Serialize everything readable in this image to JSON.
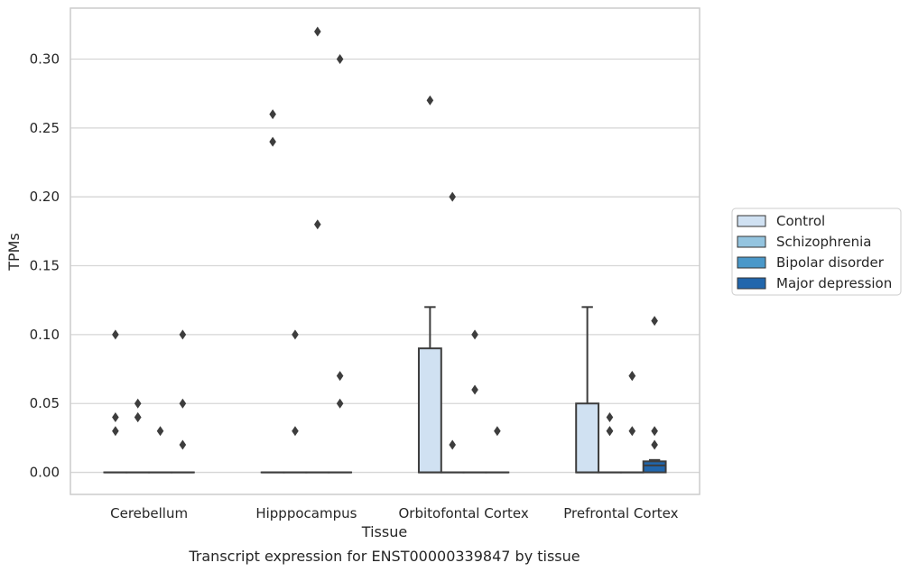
{
  "chart_data": {
    "type": "box",
    "caption": "Transcript expression for ENST00000339847 by tissue",
    "xlabel": "Tissue",
    "ylabel": "TPMs",
    "categories": [
      "Cerebellum",
      "Hipppocampus",
      "Orbitofontal Cortex",
      "Prefrontal Cortex"
    ],
    "ylim": [
      -0.016,
      0.337
    ],
    "yticks": [
      0.0,
      0.05,
      0.1,
      0.15,
      0.2,
      0.25,
      0.3
    ],
    "ytick_labels": [
      "0.00",
      "0.05",
      "0.10",
      "0.15",
      "0.20",
      "0.25",
      "0.30"
    ],
    "grid": "horizontal",
    "legend_position": "right",
    "series": [
      {
        "name": "Control",
        "color": "#d0e1f2",
        "boxes": [
          {
            "category": "Cerebellum",
            "q1": 0,
            "median": 0,
            "q3": 0,
            "whislo": 0,
            "whishi": 0,
            "fliers": [
              0.1,
              0.04,
              0.03
            ]
          },
          {
            "category": "Hipppocampus",
            "q1": 0,
            "median": 0,
            "q3": 0,
            "whislo": 0,
            "whishi": 0,
            "fliers": [
              0.26,
              0.24
            ]
          },
          {
            "category": "Orbitofontal Cortex",
            "q1": 0,
            "median": 0,
            "q3": 0.09,
            "whislo": 0,
            "whishi": 0.12,
            "fliers": [
              0.27
            ]
          },
          {
            "category": "Prefrontal Cortex",
            "q1": 0,
            "median": 0,
            "q3": 0.05,
            "whislo": 0,
            "whishi": 0.12,
            "fliers": []
          }
        ]
      },
      {
        "name": "Schizophrenia",
        "color": "#94c4df",
        "boxes": [
          {
            "category": "Cerebellum",
            "q1": 0,
            "median": 0,
            "q3": 0,
            "whislo": 0,
            "whishi": 0,
            "fliers": [
              0.05,
              0.04,
              0.04
            ]
          },
          {
            "category": "Hipppocampus",
            "q1": 0,
            "median": 0,
            "q3": 0,
            "whislo": 0,
            "whishi": 0,
            "fliers": [
              0.1,
              0.03
            ]
          },
          {
            "category": "Orbitofontal Cortex",
            "q1": 0,
            "median": 0,
            "q3": 0,
            "whislo": 0,
            "whishi": 0,
            "fliers": [
              0.2,
              0.02
            ]
          },
          {
            "category": "Prefrontal Cortex",
            "q1": 0,
            "median": 0,
            "q3": 0,
            "whislo": 0,
            "whishi": 0,
            "fliers": [
              0.04,
              0.03,
              0.03
            ]
          }
        ]
      },
      {
        "name": "Bipolar disorder",
        "color": "#4a98c9",
        "boxes": [
          {
            "category": "Cerebellum",
            "q1": 0,
            "median": 0,
            "q3": 0,
            "whislo": 0,
            "whishi": 0,
            "fliers": [
              0.03
            ]
          },
          {
            "category": "Hipppocampus",
            "q1": 0,
            "median": 0,
            "q3": 0,
            "whislo": 0,
            "whishi": 0,
            "fliers": [
              0.32,
              0.18
            ]
          },
          {
            "category": "Orbitofontal Cortex",
            "q1": 0,
            "median": 0,
            "q3": 0,
            "whislo": 0,
            "whishi": 0,
            "fliers": [
              0.1,
              0.06
            ]
          },
          {
            "category": "Prefrontal Cortex",
            "q1": 0,
            "median": 0,
            "q3": 0,
            "whislo": 0,
            "whishi": 0,
            "fliers": [
              0.07,
              0.07,
              0.03
            ]
          }
        ]
      },
      {
        "name": "Major depression",
        "color": "#2166ac",
        "boxes": [
          {
            "category": "Cerebellum",
            "q1": 0,
            "median": 0,
            "q3": 0,
            "whislo": 0,
            "whishi": 0,
            "fliers": [
              0.1,
              0.05,
              0.02
            ]
          },
          {
            "category": "Hipppocampus",
            "q1": 0,
            "median": 0,
            "q3": 0,
            "whislo": 0,
            "whishi": 0,
            "fliers": [
              0.3,
              0.07,
              0.05
            ]
          },
          {
            "category": "Orbitofontal Cortex",
            "q1": 0,
            "median": 0,
            "q3": 0,
            "whislo": 0,
            "whishi": 0,
            "fliers": [
              0.03
            ]
          },
          {
            "category": "Prefrontal Cortex",
            "q1": 0,
            "median": 0.005,
            "q3": 0.008,
            "whislo": 0,
            "whishi": 0.009,
            "fliers": [
              0.11,
              0.03,
              0.02
            ]
          }
        ]
      }
    ]
  }
}
